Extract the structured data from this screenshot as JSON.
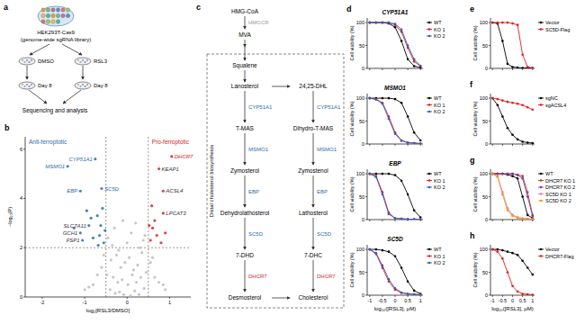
{
  "schematic": {
    "panel": "a",
    "library": [
      "HEK293T-Cas9",
      "(genome-wide sgRNA library)"
    ],
    "arms": [
      "DMSO",
      "RSL3"
    ],
    "time": "Day 8",
    "readout": "Sequencing and analysis"
  },
  "pathway": {
    "panel": "c",
    "upstream": {
      "start": "HMG-CoA",
      "enzyme": "HMGCR",
      "product": "MVA"
    },
    "box_title": "Distal cholesterol biosynthesis",
    "first": "Squalene",
    "left": [
      "Lanosterol",
      "T-MAS",
      "Zymosterol",
      "Dehydrolathosterol",
      "7-DHD",
      "Desmosterol"
    ],
    "right": [
      "24,25-DHL",
      "Dihydro-T-MAS",
      "Zymostenol",
      "Lathosterol",
      "7-DHC",
      "Cholesterol"
    ],
    "enzymes": [
      {
        "name": "CYP51A1",
        "color": "#2b6cb0"
      },
      {
        "name": "MSMO1",
        "color": "#2b6cb0"
      },
      {
        "name": "EBP",
        "color": "#2b6cb0"
      },
      {
        "name": "SC5D",
        "color": "#2b6cb0"
      },
      {
        "name": "DHCR7",
        "color": "#d7261e"
      }
    ]
  },
  "chart_data": [
    {
      "panel": "b",
      "type": "scatter",
      "marker": "circle",
      "x_label": "log₂[RSL3/DMSO]",
      "y_label": "−log₁₀(P)",
      "xlim": [
        -2.4,
        1.5
      ],
      "xticks": [
        -2,
        -1,
        0,
        1
      ],
      "ylim": [
        0,
        6.5
      ],
      "yticks": [
        0,
        2,
        4,
        6
      ],
      "series": [
        {
          "color": "#bdbdbd",
          "x": [
            -0.45,
            -0.3,
            -0.2,
            -0.1,
            0,
            0.1,
            0.2,
            0.3,
            0.42,
            -0.38,
            -0.25,
            -0.15,
            -0.05,
            0.05,
            0.15,
            0.25,
            0.35,
            -0.48,
            -0.33,
            -0.22,
            -0.12,
            0.02,
            0.12,
            0.22,
            0.32,
            0.45,
            -0.6,
            -0.7,
            -0.8,
            0.55,
            0.65,
            0.75,
            -0.9,
            0.85,
            -0.4,
            0.4,
            -0.18,
            0.18,
            -0.28,
            0.28,
            -1.0,
            0.9,
            -0.55,
            0.6,
            -0.08,
            0.08,
            -0.35,
            0.38
          ],
          "values": [
            2.4,
            2.8,
            1.9,
            3.1,
            2.2,
            2.6,
            3.0,
            2.0,
            2.5,
            1.5,
            1.7,
            1.2,
            1.4,
            1.6,
            1.1,
            1.3,
            1.8,
            0.9,
            0.8,
            0.6,
            0.7,
            0.5,
            0.9,
            0.6,
            0.8,
            1.0,
            1.2,
            0.9,
            0.5,
            1.4,
            0.8,
            0.6,
            0.4,
            0.5,
            0.3,
            0.35,
            0.2,
            0.25,
            0.15,
            0.1,
            0.3,
            0.3,
            1.7,
            1.6,
            0.1,
            0.05,
            2.1,
            2.3
          ]
        },
        {
          "color": "#2b6cb0",
          "x": [
            -1.4,
            -0.75,
            -1.1,
            -0.6,
            -0.9,
            -1.1,
            -1.05,
            -0.55,
            -0.65,
            -0.7,
            -0.8,
            -0.58,
            -0.62,
            -0.85,
            -0.52,
            -0.95,
            -1.25,
            -0.68
          ],
          "values": [
            5.3,
            5.6,
            4.3,
            4.4,
            2.9,
            2.6,
            2.3,
            2.2,
            2.5,
            3.3,
            2.4,
            3.6,
            2.9,
            3.2,
            2.7,
            3.5,
            2.8,
            2.1
          ]
        },
        {
          "color": "#d7261e",
          "x": [
            1.05,
            0.75,
            0.85,
            0.85,
            0.55,
            0.6,
            0.7,
            0.65,
            0.9,
            0.58,
            0.8,
            0.52
          ],
          "values": [
            5.7,
            5.2,
            4.3,
            3.4,
            2.3,
            2.8,
            2.5,
            3.1,
            2.6,
            3.7,
            2.2,
            2.9
          ]
        }
      ],
      "reference_lines": {
        "x": [
          -0.5,
          0.5
        ],
        "y": [
          2
        ]
      },
      "group_labels": [
        {
          "text": "Anti-ferroptotic",
          "color": "#2b6cb0"
        },
        {
          "text": "Pro-ferroptotic",
          "color": "#d7261e"
        }
      ],
      "annotations": [
        {
          "text": "MSMO1",
          "x": -1.4,
          "y": 5.3,
          "color": "#2b6cb0"
        },
        {
          "text": "CYP51A1",
          "x": -0.75,
          "y": 5.6,
          "color": "#2b6cb0"
        },
        {
          "text": "EBP",
          "x": -1.1,
          "y": 4.3,
          "color": "#2b6cb0"
        },
        {
          "text": "SC5D",
          "x": -0.6,
          "y": 4.4,
          "color": "#2b6cb0"
        },
        {
          "text": "SLC7A11",
          "x": -0.9,
          "y": 2.9,
          "color": "#333333"
        },
        {
          "text": "GCH1",
          "x": -1.1,
          "y": 2.6,
          "color": "#333333"
        },
        {
          "text": "FSP1",
          "x": -1.05,
          "y": 2.3,
          "color": "#333333"
        },
        {
          "text": "DHCR7",
          "x": 1.05,
          "y": 5.7,
          "color": "#d7261e"
        },
        {
          "text": "KEAP1",
          "x": 0.75,
          "y": 5.2,
          "color": "#333333"
        },
        {
          "text": "ACSL4",
          "x": 0.85,
          "y": 4.3,
          "color": "#333333"
        },
        {
          "text": "LPCAT3",
          "x": 0.85,
          "y": 3.4,
          "color": "#333333"
        }
      ]
    },
    {
      "panel": "d",
      "type": "line",
      "marker": "circle",
      "title": "CYP51A1",
      "y_label": "Cell viability (%)",
      "tick_labels": "y",
      "legend": "right",
      "x": [
        -1,
        -0.75,
        -0.5,
        -0.25,
        0,
        0.25,
        0.5,
        0.75,
        1
      ],
      "xlim": [
        -1.1,
        1.1
      ],
      "xticks": [
        -1,
        -0.5,
        0,
        0.5,
        1
      ],
      "ylim": [
        0,
        110
      ],
      "yticks": [
        0,
        50,
        100
      ],
      "series": [
        {
          "name": "WT",
          "color": "#000000",
          "values": [
            100,
            100,
            100,
            98,
            90,
            60,
            20,
            5,
            2
          ]
        },
        {
          "name": "KO 1",
          "color": "#e41a1c",
          "values": [
            100,
            100,
            100,
            100,
            95,
            80,
            45,
            15,
            5
          ]
        },
        {
          "name": "KO 2",
          "color": "#2f5fbf",
          "values": [
            100,
            100,
            100,
            100,
            97,
            85,
            50,
            20,
            6
          ]
        }
      ]
    },
    {
      "type": "line",
      "marker": "circle",
      "title": "MSMO1",
      "y_label": "Cell viability (%)",
      "tick_labels": "y",
      "legend": "right",
      "x": [
        -1,
        -0.75,
        -0.5,
        -0.25,
        0,
        0.25,
        0.5,
        0.75,
        1
      ],
      "xlim": [
        -1.1,
        1.1
      ],
      "xticks": [
        -1,
        -0.5,
        0,
        0.5,
        1
      ],
      "ylim": [
        0,
        110
      ],
      "yticks": [
        0,
        50,
        100
      ],
      "series": [
        {
          "name": "WT",
          "color": "#000000",
          "values": [
            100,
            100,
            100,
            100,
            98,
            90,
            60,
            25,
            8
          ]
        },
        {
          "name": "KO 1",
          "color": "#e41a1c",
          "values": [
            100,
            98,
            90,
            60,
            25,
            8,
            3,
            2,
            1
          ]
        },
        {
          "name": "KO 2",
          "color": "#2f5fbf",
          "values": [
            100,
            97,
            88,
            55,
            22,
            7,
            3,
            2,
            1
          ]
        }
      ]
    },
    {
      "type": "line",
      "marker": "circle",
      "title": "EBP",
      "y_label": "Cell viability (%)",
      "tick_labels": "y",
      "legend": "right",
      "x": [
        -1,
        -0.75,
        -0.5,
        -0.25,
        0,
        0.25,
        0.5,
        0.75,
        1
      ],
      "xlim": [
        -1.1,
        1.1
      ],
      "xticks": [
        -1,
        -0.5,
        0,
        0.5,
        1
      ],
      "ylim": [
        0,
        110
      ],
      "yticks": [
        0,
        50,
        100
      ],
      "series": [
        {
          "name": "WT",
          "color": "#000000",
          "values": [
            100,
            100,
            100,
            100,
            97,
            85,
            55,
            20,
            5
          ]
        },
        {
          "name": "KO 1",
          "color": "#e41a1c",
          "values": [
            100,
            95,
            60,
            15,
            3,
            2,
            1,
            1,
            1
          ]
        },
        {
          "name": "KO 2",
          "color": "#2f5fbf",
          "values": [
            100,
            93,
            55,
            12,
            3,
            2,
            1,
            1,
            1
          ]
        }
      ]
    },
    {
      "type": "line",
      "marker": "circle",
      "title": "SC5D",
      "y_label": "Cell viability (%)",
      "x_label": "log₁₀([RSL3], μM)",
      "legend": "right",
      "x": [
        -1,
        -0.75,
        -0.5,
        -0.25,
        0,
        0.25,
        0.5,
        0.75,
        1
      ],
      "xlim": [
        -1.1,
        1.1
      ],
      "xticks": [
        -1,
        -0.5,
        0,
        0.5,
        1
      ],
      "ylim": [
        0,
        110
      ],
      "yticks": [
        0,
        50,
        100
      ],
      "series": [
        {
          "name": "WT",
          "color": "#000000",
          "values": [
            100,
            100,
            98,
            95,
            85,
            60,
            30,
            10,
            3
          ]
        },
        {
          "name": "KO 1",
          "color": "#e41a1c",
          "values": [
            100,
            90,
            60,
            30,
            12,
            5,
            3,
            2,
            1
          ]
        },
        {
          "name": "KO 2",
          "color": "#2f5fbf",
          "values": [
            100,
            92,
            65,
            35,
            15,
            6,
            3,
            2,
            1
          ]
        }
      ]
    },
    {
      "panel": "e",
      "type": "line",
      "marker": "circle",
      "y_label": "Cell viability (%)",
      "tick_labels": "y",
      "legend": "right",
      "x": [
        -1,
        -0.75,
        -0.5,
        -0.25,
        0,
        0.25,
        0.5,
        0.75,
        1
      ],
      "xlim": [
        -1.1,
        1.1
      ],
      "xticks": [
        -1,
        -0.5,
        0,
        0.5,
        1
      ],
      "ylim": [
        0,
        110
      ],
      "yticks": [
        0,
        50,
        100
      ],
      "series": [
        {
          "name": "Vector",
          "color": "#000000",
          "values": [
            100,
            98,
            60,
            10,
            3,
            2,
            1,
            1,
            1
          ]
        },
        {
          "name": "SC5D-Flag",
          "color": "#e41a1c",
          "values": [
            100,
            100,
            100,
            100,
            98,
            95,
            30,
            3,
            1
          ]
        }
      ]
    },
    {
      "panel": "f",
      "type": "line",
      "marker": "circle",
      "y_label": "Cell viability (%)",
      "tick_labels": "y",
      "legend": "right",
      "x": [
        -1,
        -0.75,
        -0.5,
        -0.25,
        0,
        0.25,
        0.5,
        0.75,
        1
      ],
      "xlim": [
        -1.1,
        1.1
      ],
      "xticks": [
        -1,
        -0.5,
        0,
        0.5,
        1
      ],
      "ylim": [
        0,
        110
      ],
      "yticks": [
        0,
        50,
        100
      ],
      "series": [
        {
          "name": "sgNC",
          "color": "#000000",
          "values": [
            100,
            85,
            60,
            35,
            20,
            10,
            5,
            3,
            2
          ]
        },
        {
          "name": "sgACSL4",
          "color": "#e41a1c",
          "values": [
            100,
            98,
            95,
            92,
            90,
            88,
            85,
            80,
            75
          ]
        }
      ]
    },
    {
      "panel": "g",
      "type": "line",
      "marker": "circle",
      "y_label": "Cell viability (%)",
      "tick_labels": "y",
      "legend": "right",
      "x": [
        -1,
        -0.75,
        -0.5,
        -0.25,
        0,
        0.25,
        0.5,
        0.75,
        1
      ],
      "xlim": [
        -1.1,
        1.1
      ],
      "xticks": [
        -1,
        -0.5,
        0,
        0.5,
        1
      ],
      "ylim": [
        0,
        110
      ],
      "yticks": [
        0,
        50,
        100
      ],
      "series": [
        {
          "name": "WT",
          "color": "#000000",
          "values": [
            100,
            100,
            100,
            98,
            95,
            90,
            50,
            10,
            3
          ]
        },
        {
          "name": "DHCR7 KO 1",
          "color": "#c0392b",
          "values": [
            100,
            100,
            100,
            100,
            100,
            98,
            95,
            60,
            10
          ]
        },
        {
          "name": "DHCR7 KO 2",
          "color": "#7b3fa0",
          "values": [
            100,
            100,
            100,
            100,
            100,
            97,
            90,
            50,
            8
          ]
        },
        {
          "name": "SC5D KO 1",
          "color": "#e377c2",
          "values": [
            100,
            95,
            60,
            25,
            10,
            5,
            3,
            2,
            1
          ]
        },
        {
          "name": "SC5D KO 2",
          "color": "#f39c12",
          "values": [
            100,
            93,
            55,
            20,
            8,
            4,
            2,
            1,
            1
          ]
        }
      ]
    },
    {
      "panel": "h",
      "type": "line",
      "marker": "circle",
      "y_label": "Cell viability (%)",
      "x_label": "log₁₀([RSL3], μM)",
      "legend": "right",
      "x": [
        -1,
        -0.75,
        -0.5,
        -0.25,
        0,
        0.25,
        0.5,
        0.75,
        1
      ],
      "xlim": [
        -1.1,
        1.1
      ],
      "xticks": [
        -1,
        -0.5,
        0,
        0.5,
        1
      ],
      "ylim": [
        0,
        110
      ],
      "yticks": [
        0,
        50,
        100
      ],
      "series": [
        {
          "name": "Vector",
          "color": "#000000",
          "values": [
            100,
            100,
            98,
            95,
            92,
            88,
            75,
            60,
            45
          ]
        },
        {
          "name": "DHCR7-Flag",
          "color": "#e41a1c",
          "values": [
            100,
            95,
            80,
            50,
            20,
            8,
            3,
            2,
            1
          ]
        }
      ]
    }
  ]
}
